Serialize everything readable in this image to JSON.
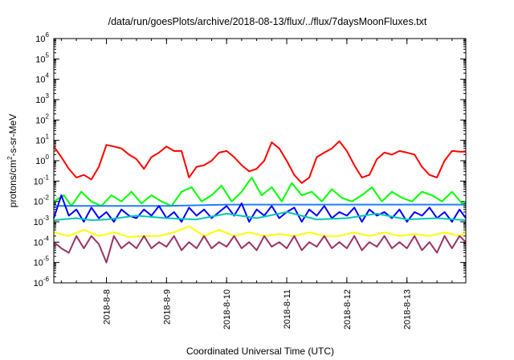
{
  "chart_data": {
    "type": "line",
    "title": "/data/run/goesPlots/archive/2018-08-13/flux/../flux/7daysMoonFluxes.txt",
    "xlabel": "Coordinated Universal Time (UTC)",
    "ylabel_parts": [
      "protons/cm",
      "2",
      "-s-sr-MeV"
    ],
    "y_scale": "log",
    "ylim": [
      1e-06,
      1000000.0
    ],
    "y_ticks": [
      {
        "base": "10",
        "exp": "-6",
        "value": 1e-06
      },
      {
        "base": "10",
        "exp": "-5",
        "value": 1e-05
      },
      {
        "base": "10",
        "exp": "-4",
        "value": 0.0001
      },
      {
        "base": "10",
        "exp": "-3",
        "value": 0.001
      },
      {
        "base": "10",
        "exp": "-2",
        "value": 0.01
      },
      {
        "base": "10",
        "exp": "-1",
        "value": 0.1
      },
      {
        "base": "10",
        "exp": "0",
        "value": 1
      },
      {
        "base": "10",
        "exp": "1",
        "value": 10
      },
      {
        "base": "10",
        "exp": "2",
        "value": 100
      },
      {
        "base": "10",
        "exp": "3",
        "value": 1000
      },
      {
        "base": "10",
        "exp": "4",
        "value": 10000
      },
      {
        "base": "10",
        "exp": "5",
        "value": 100000
      },
      {
        "base": "10",
        "exp": "6",
        "value": 1000000
      }
    ],
    "x_range": [
      "2018-08-07 03:00",
      "2018-08-13 23:30"
    ],
    "x_ticks": [
      "2018-8-8",
      "2018-8-9",
      "2018-8-10",
      "2018-8-11",
      "2018-8-12",
      "2018-8-13"
    ],
    "grid": false,
    "legend": "none",
    "series": [
      {
        "color": "#ff0000",
        "x": [
          "2018-08-07 03:00",
          "2018-08-07 06:00",
          "2018-08-07 09:00",
          "2018-08-07 12:00",
          "2018-08-07 15:00",
          "2018-08-07 18:00",
          "2018-08-07 21:00",
          "2018-08-08 00:00",
          "2018-08-08 03:00",
          "2018-08-08 06:00",
          "2018-08-08 09:00",
          "2018-08-08 12:00",
          "2018-08-08 15:00",
          "2018-08-08 18:00",
          "2018-08-08 21:00",
          "2018-08-09 00:00",
          "2018-08-09 03:00",
          "2018-08-09 06:00",
          "2018-08-09 09:00",
          "2018-08-09 12:00",
          "2018-08-09 15:00",
          "2018-08-09 18:00",
          "2018-08-09 21:00",
          "2018-08-10 00:00",
          "2018-08-10 03:00",
          "2018-08-10 06:00",
          "2018-08-10 09:00",
          "2018-08-10 12:00",
          "2018-08-10 15:00",
          "2018-08-10 18:00",
          "2018-08-10 21:00",
          "2018-08-11 00:00",
          "2018-08-11 03:00",
          "2018-08-11 06:00",
          "2018-08-11 09:00",
          "2018-08-11 12:00",
          "2018-08-11 15:00",
          "2018-08-11 18:00",
          "2018-08-11 21:00",
          "2018-08-12 00:00",
          "2018-08-12 03:00",
          "2018-08-12 06:00",
          "2018-08-12 09:00",
          "2018-08-12 12:00",
          "2018-08-12 15:00",
          "2018-08-12 18:00",
          "2018-08-12 21:00",
          "2018-08-13 00:00",
          "2018-08-13 03:00",
          "2018-08-13 06:00",
          "2018-08-13 09:00",
          "2018-08-13 12:00",
          "2018-08-13 15:00",
          "2018-08-13 18:00",
          "2018-08-13 21:00",
          "2018-08-13 23:30"
        ],
        "y": [
          5,
          1.5,
          0.4,
          0.15,
          0.2,
          0.12,
          0.5,
          6,
          5,
          4,
          2,
          1.2,
          0.4,
          1.5,
          2.5,
          5,
          3,
          3,
          0.15,
          0.5,
          0.6,
          1,
          2.5,
          3,
          1.5,
          0.6,
          0.3,
          0.4,
          1,
          8,
          4,
          1,
          0.2,
          0.08,
          0.15,
          1.5,
          2.5,
          4,
          9,
          3,
          0.6,
          0.15,
          0.2,
          1.2,
          2.5,
          2,
          3,
          2.5,
          2,
          0.5,
          0.2,
          0.15,
          1,
          3,
          2.8,
          2.8
        ]
      },
      {
        "color": "#00ff00",
        "x": [
          "2018-08-07 03:00",
          "2018-08-07 07:00",
          "2018-08-07 10:00",
          "2018-08-07 14:00",
          "2018-08-07 18:00",
          "2018-08-07 22:00",
          "2018-08-08 02:00",
          "2018-08-08 06:00",
          "2018-08-08 10:00",
          "2018-08-08 14:00",
          "2018-08-08 18:00",
          "2018-08-08 22:00",
          "2018-08-09 02:00",
          "2018-08-09 06:00",
          "2018-08-09 10:00",
          "2018-08-09 14:00",
          "2018-08-09 18:00",
          "2018-08-09 22:00",
          "2018-08-10 02:00",
          "2018-08-10 06:00",
          "2018-08-10 10:00",
          "2018-08-10 14:00",
          "2018-08-10 18:00",
          "2018-08-10 22:00",
          "2018-08-11 02:00",
          "2018-08-11 06:00",
          "2018-08-11 10:00",
          "2018-08-11 14:00",
          "2018-08-11 18:00",
          "2018-08-11 22:00",
          "2018-08-12 02:00",
          "2018-08-12 06:00",
          "2018-08-12 10:00",
          "2018-08-12 14:00",
          "2018-08-12 18:00",
          "2018-08-12 22:00",
          "2018-08-13 02:00",
          "2018-08-13 06:00",
          "2018-08-13 10:00",
          "2018-08-13 14:00",
          "2018-08-13 18:00",
          "2018-08-13 22:00",
          "2018-08-13 23:30"
        ],
        "y": [
          0.01,
          0.02,
          0.006,
          0.03,
          0.01,
          0.006,
          0.02,
          0.01,
          0.03,
          0.008,
          0.02,
          0.01,
          0.006,
          0.03,
          0.05,
          0.01,
          0.02,
          0.06,
          0.01,
          0.03,
          0.15,
          0.02,
          0.05,
          0.01,
          0.08,
          0.02,
          0.03,
          0.01,
          0.04,
          0.015,
          0.01,
          0.02,
          0.05,
          0.01,
          0.03,
          0.015,
          0.01,
          0.03,
          0.02,
          0.01,
          0.03,
          0.008,
          0.01
        ]
      },
      {
        "color": "#1f7fff",
        "x": [
          "2018-08-07 03:00",
          "2018-08-08 00:00",
          "2018-08-09 00:00",
          "2018-08-10 00:00",
          "2018-08-11 00:00",
          "2018-08-12 00:00",
          "2018-08-13 00:00",
          "2018-08-13 23:30"
        ],
        "y": [
          0.006,
          0.006,
          0.006,
          0.007,
          0.007,
          0.007,
          0.007,
          0.007
        ]
      },
      {
        "color": "#0000ff",
        "x": [
          "2018-08-07 03:00",
          "2018-08-07 06:00",
          "2018-08-07 09:00",
          "2018-08-07 12:00",
          "2018-08-07 15:00",
          "2018-08-07 18:00",
          "2018-08-07 21:00",
          "2018-08-08 00:00",
          "2018-08-08 03:00",
          "2018-08-08 06:00",
          "2018-08-08 09:00",
          "2018-08-08 12:00",
          "2018-08-08 15:00",
          "2018-08-08 18:00",
          "2018-08-08 21:00",
          "2018-08-09 00:00",
          "2018-08-09 03:00",
          "2018-08-09 06:00",
          "2018-08-09 09:00",
          "2018-08-09 12:00",
          "2018-08-09 15:00",
          "2018-08-09 18:00",
          "2018-08-09 21:00",
          "2018-08-10 00:00",
          "2018-08-10 03:00",
          "2018-08-10 06:00",
          "2018-08-10 09:00",
          "2018-08-10 12:00",
          "2018-08-10 15:00",
          "2018-08-10 18:00",
          "2018-08-10 21:00",
          "2018-08-11 00:00",
          "2018-08-11 03:00",
          "2018-08-11 06:00",
          "2018-08-11 09:00",
          "2018-08-11 12:00",
          "2018-08-11 15:00",
          "2018-08-11 18:00",
          "2018-08-11 21:00",
          "2018-08-12 00:00",
          "2018-08-12 03:00",
          "2018-08-12 06:00",
          "2018-08-12 09:00",
          "2018-08-12 12:00",
          "2018-08-12 15:00",
          "2018-08-12 18:00",
          "2018-08-12 21:00",
          "2018-08-13 00:00",
          "2018-08-13 03:00",
          "2018-08-13 06:00",
          "2018-08-13 09:00",
          "2018-08-13 12:00",
          "2018-08-13 15:00",
          "2018-08-13 18:00",
          "2018-08-13 21:00",
          "2018-08-13 23:30"
        ],
        "y": [
          0.0015,
          0.02,
          0.002,
          0.004,
          0.001,
          0.005,
          0.0015,
          0.003,
          0.001,
          0.004,
          0.002,
          0.0015,
          0.004,
          0.002,
          0.006,
          0.0015,
          0.003,
          0.001,
          0.005,
          0.002,
          0.004,
          0.0015,
          0.003,
          0.006,
          0.002,
          0.008,
          0.001,
          0.004,
          0.002,
          0.006,
          0.0015,
          0.003,
          0.005,
          0.001,
          0.004,
          0.002,
          0.006,
          0.0015,
          0.003,
          0.002,
          0.005,
          0.001,
          0.004,
          0.002,
          0.003,
          0.0015,
          0.004,
          0.001,
          0.003,
          0.002,
          0.005,
          0.0015,
          0.003,
          0.001,
          0.004,
          0.0015
        ]
      },
      {
        "color": "#00c8b4",
        "x": [
          "2018-08-07 03:00",
          "2018-08-07 12:00",
          "2018-08-07 18:00",
          "2018-08-08 00:00",
          "2018-08-08 12:00",
          "2018-08-09 00:00",
          "2018-08-09 12:00",
          "2018-08-10 00:00",
          "2018-08-10 12:00",
          "2018-08-11 00:00",
          "2018-08-11 12:00",
          "2018-08-12 00:00",
          "2018-08-12 12:00",
          "2018-08-13 00:00",
          "2018-08-13 12:00",
          "2018-08-13 23:30"
        ],
        "y": [
          0.0012,
          0.0015,
          0.0012,
          0.0013,
          0.002,
          0.0015,
          0.0013,
          0.0025,
          0.0015,
          0.003,
          0.0013,
          0.0015,
          0.0025,
          0.0013,
          0.0015,
          0.0012
        ]
      },
      {
        "color": "#ffff00",
        "x": [
          "2018-08-07 03:00",
          "2018-08-07 09:00",
          "2018-08-07 15:00",
          "2018-08-07 21:00",
          "2018-08-08 03:00",
          "2018-08-08 09:00",
          "2018-08-08 15:00",
          "2018-08-08 21:00",
          "2018-08-09 03:00",
          "2018-08-09 09:00",
          "2018-08-09 15:00",
          "2018-08-09 21:00",
          "2018-08-10 03:00",
          "2018-08-10 09:00",
          "2018-08-10 15:00",
          "2018-08-10 21:00",
          "2018-08-11 03:00",
          "2018-08-11 09:00",
          "2018-08-11 15:00",
          "2018-08-11 21:00",
          "2018-08-12 03:00",
          "2018-08-12 09:00",
          "2018-08-12 15:00",
          "2018-08-12 21:00",
          "2018-08-13 03:00",
          "2018-08-13 09:00",
          "2018-08-13 15:00",
          "2018-08-13 21:00",
          "2018-08-13 23:30"
        ],
        "y": [
          0.0003,
          0.0002,
          0.0004,
          0.0002,
          0.0003,
          0.00018,
          0.0002,
          0.0002,
          0.0003,
          0.0006,
          0.0002,
          0.0004,
          0.0002,
          0.0003,
          0.0002,
          0.00025,
          0.0002,
          0.0003,
          0.0002,
          0.0002,
          0.0003,
          0.0002,
          0.0003,
          0.0002,
          0.00025,
          0.0002,
          0.0003,
          0.0002,
          0.0003
        ]
      },
      {
        "color": "#993366",
        "x": [
          "2018-08-07 03:00",
          "2018-08-07 06:00",
          "2018-08-07 09:00",
          "2018-08-07 12:00",
          "2018-08-07 15:00",
          "2018-08-07 18:00",
          "2018-08-07 21:00",
          "2018-08-08 00:00",
          "2018-08-08 03:00",
          "2018-08-08 06:00",
          "2018-08-08 09:00",
          "2018-08-08 12:00",
          "2018-08-08 15:00",
          "2018-08-08 18:00",
          "2018-08-08 21:00",
          "2018-08-09 00:00",
          "2018-08-09 03:00",
          "2018-08-09 06:00",
          "2018-08-09 09:00",
          "2018-08-09 12:00",
          "2018-08-09 15:00",
          "2018-08-09 18:00",
          "2018-08-09 21:00",
          "2018-08-10 00:00",
          "2018-08-10 03:00",
          "2018-08-10 06:00",
          "2018-08-10 09:00",
          "2018-08-10 12:00",
          "2018-08-10 15:00",
          "2018-08-10 18:00",
          "2018-08-10 21:00",
          "2018-08-11 00:00",
          "2018-08-11 03:00",
          "2018-08-11 06:00",
          "2018-08-11 09:00",
          "2018-08-11 12:00",
          "2018-08-11 15:00",
          "2018-08-11 18:00",
          "2018-08-11 21:00",
          "2018-08-12 00:00",
          "2018-08-12 03:00",
          "2018-08-12 06:00",
          "2018-08-12 09:00",
          "2018-08-12 12:00",
          "2018-08-12 15:00",
          "2018-08-12 18:00",
          "2018-08-12 21:00",
          "2018-08-13 00:00",
          "2018-08-13 03:00",
          "2018-08-13 06:00",
          "2018-08-13 09:00",
          "2018-08-13 12:00",
          "2018-08-13 15:00",
          "2018-08-13 18:00",
          "2018-08-13 21:00",
          "2018-08-13 23:30"
        ],
        "y": [
          0.0001,
          5e-05,
          3e-05,
          0.0002,
          5e-05,
          0.0002,
          8e-05,
          1e-05,
          0.0002,
          5e-05,
          0.0001,
          5e-05,
          0.0002,
          5e-05,
          0.0001,
          6e-05,
          0.0002,
          4e-05,
          0.0001,
          5e-05,
          0.0002,
          5e-05,
          0.0001,
          6e-05,
          0.0002,
          5e-05,
          0.0001,
          4e-05,
          0.0002,
          6e-05,
          0.0001,
          5e-05,
          0.0002,
          4e-05,
          0.0001,
          6e-05,
          0.0002,
          5e-05,
          0.0001,
          5e-05,
          0.0002,
          4e-05,
          0.0001,
          6e-05,
          0.0002,
          5e-05,
          0.0001,
          5e-05,
          0.0002,
          4e-05,
          0.0001,
          3e-05,
          0.0002,
          5e-05,
          0.0002,
          0.0001
        ]
      }
    ]
  }
}
